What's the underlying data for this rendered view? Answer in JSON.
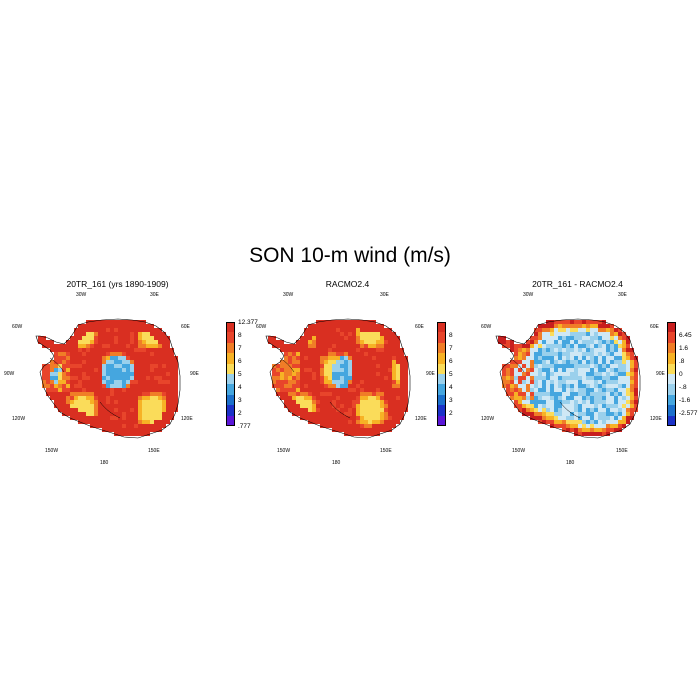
{
  "title": "SON 10-m wind (m/s)",
  "panels": [
    {
      "title": "20TR_161 (yrs 1890-1909)",
      "scheme": "wind",
      "colorbar": {
        "colors": [
          "#d92f21",
          "#e8452b",
          "#f07d27",
          "#f7b225",
          "#fadc5a",
          "#9ad0ec",
          "#45a6df",
          "#1c70cc",
          "#1b32c8",
          "#5a16d8"
        ],
        "labels": [
          "12.377",
          "8",
          "7",
          "6",
          "5",
          "4",
          "3",
          "2",
          ".777"
        ]
      }
    },
    {
      "title": "RACMO2.4",
      "scheme": "wind",
      "colorbar": {
        "colors": [
          "#d92f21",
          "#e8452b",
          "#f07d27",
          "#f7b225",
          "#fadc5a",
          "#9ad0ec",
          "#45a6df",
          "#1c70cc",
          "#1b32c8",
          "#5a16d8"
        ],
        "labels": [
          "8",
          "7",
          "6",
          "5",
          "4",
          "3",
          "2"
        ]
      }
    },
    {
      "title": "20TR_161 - RACMO2.4",
      "scheme": "diff",
      "colorbar": {
        "colors": [
          "#c81e1e",
          "#e8452b",
          "#f07d27",
          "#f7b225",
          "#fadc5a",
          "#cfe8f5",
          "#9ad0ec",
          "#45a6df",
          "#1c70cc",
          "#1b32c8"
        ],
        "labels": [
          "6.45",
          "1.6",
          ".8",
          "0",
          "-.8",
          "-1.6",
          "-2.577"
        ]
      }
    }
  ],
  "longitude_labels": {
    "w30": "30W",
    "e30": "30E",
    "w60": "60W",
    "e60": "60E",
    "w90": "90W",
    "e90": "90E",
    "w120": "120W",
    "e120": "120E",
    "w150": "150W",
    "e150": "150E",
    "lon180": "180"
  }
}
